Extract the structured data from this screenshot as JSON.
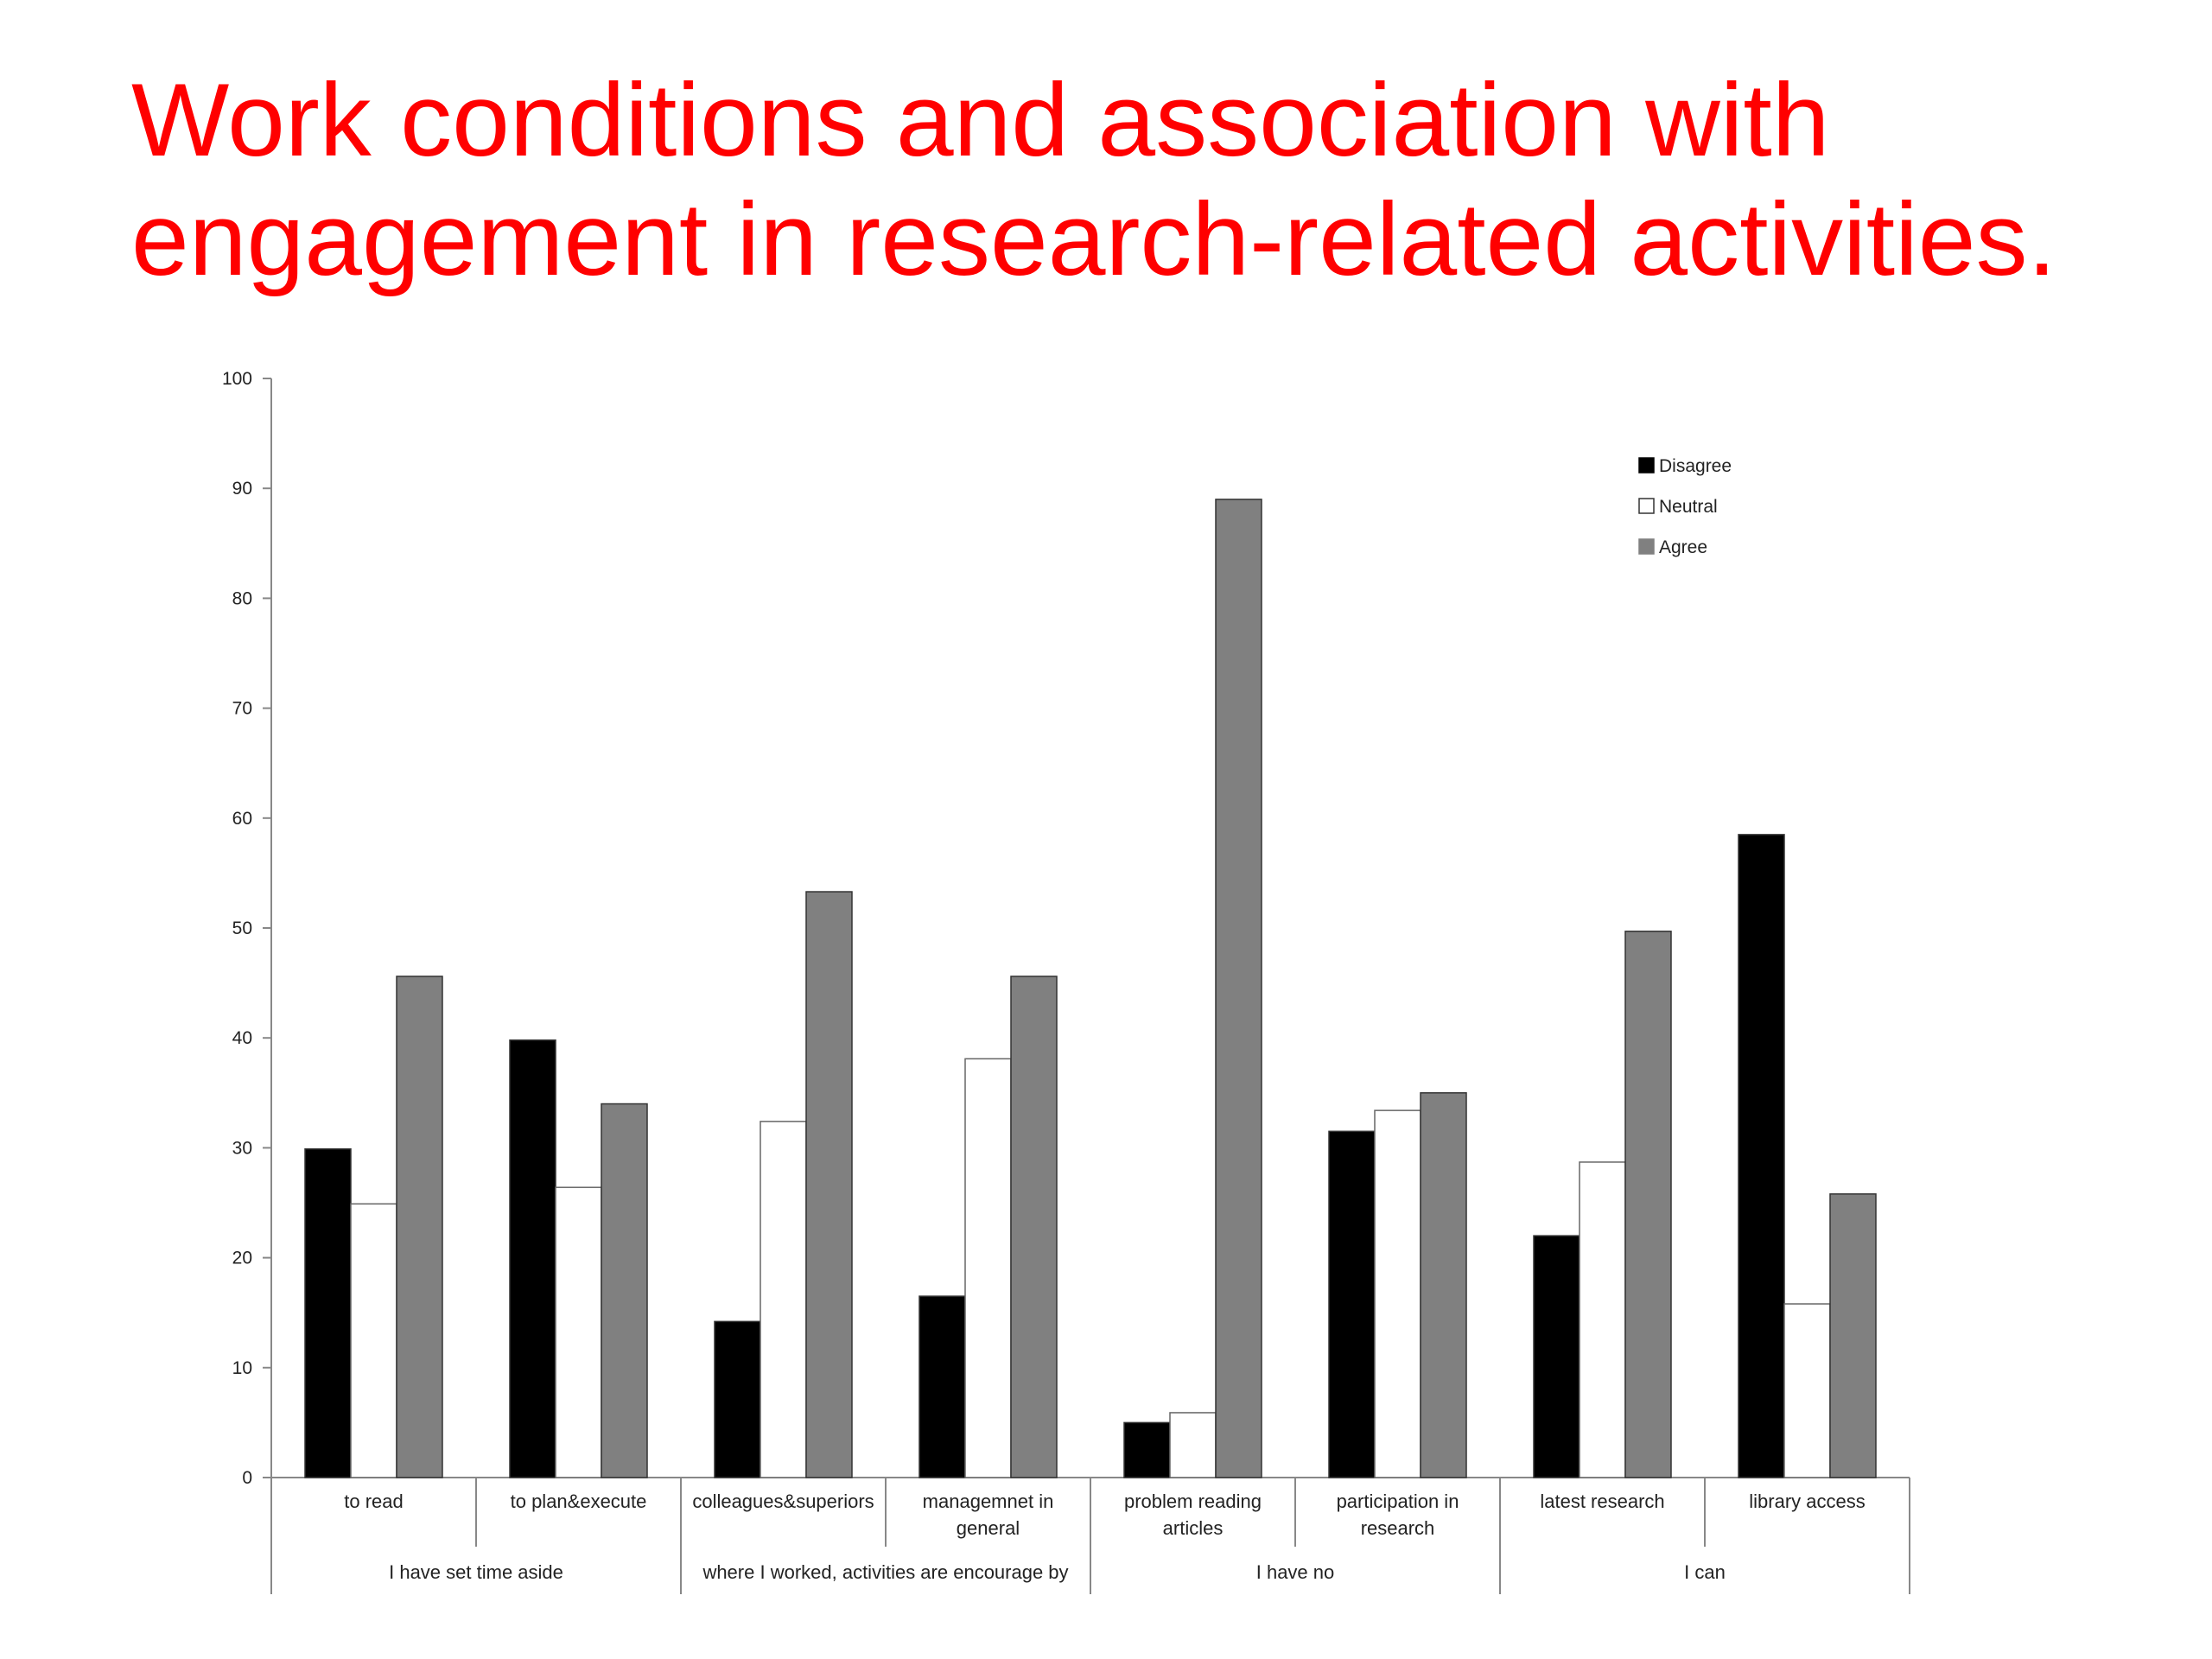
{
  "slide": {
    "title_line1": "Work conditions and association with",
    "title_line2": "engagement in research-related activities."
  },
  "chart_data": {
    "type": "bar",
    "ylim": [
      0,
      100
    ],
    "yticks": [
      0,
      10,
      20,
      30,
      40,
      50,
      60,
      70,
      80,
      90,
      100
    ],
    "grid": false,
    "legend_position": "top-right",
    "categories": [
      [
        "to read"
      ],
      [
        "to plan&execute"
      ],
      [
        "colleagues&superiors"
      ],
      [
        "managemnet in",
        "general"
      ],
      [
        "problem reading",
        "articles"
      ],
      [
        "participation in",
        "research"
      ],
      [
        "latest research"
      ],
      [
        "library access"
      ]
    ],
    "groups": [
      {
        "label": "I have set time aside",
        "span": 2
      },
      {
        "label": "where I worked, activities are encourage by",
        "span": 2
      },
      {
        "label": "I have no",
        "span": 2
      },
      {
        "label": "I can",
        "span": 2
      }
    ],
    "series": [
      {
        "name": "Disagree",
        "color": "#000000",
        "values": [
          29.9,
          39.8,
          14.2,
          16.5,
          5.0,
          31.5,
          22.0,
          58.5
        ]
      },
      {
        "name": "Neutral",
        "color": "#ffffff",
        "values": [
          24.9,
          26.4,
          32.4,
          38.1,
          5.9,
          33.4,
          28.7,
          15.8
        ]
      },
      {
        "name": "Agree",
        "color": "#808080",
        "values": [
          45.6,
          34.0,
          53.3,
          45.6,
          89.0,
          35.0,
          49.7,
          25.8
        ]
      }
    ]
  }
}
